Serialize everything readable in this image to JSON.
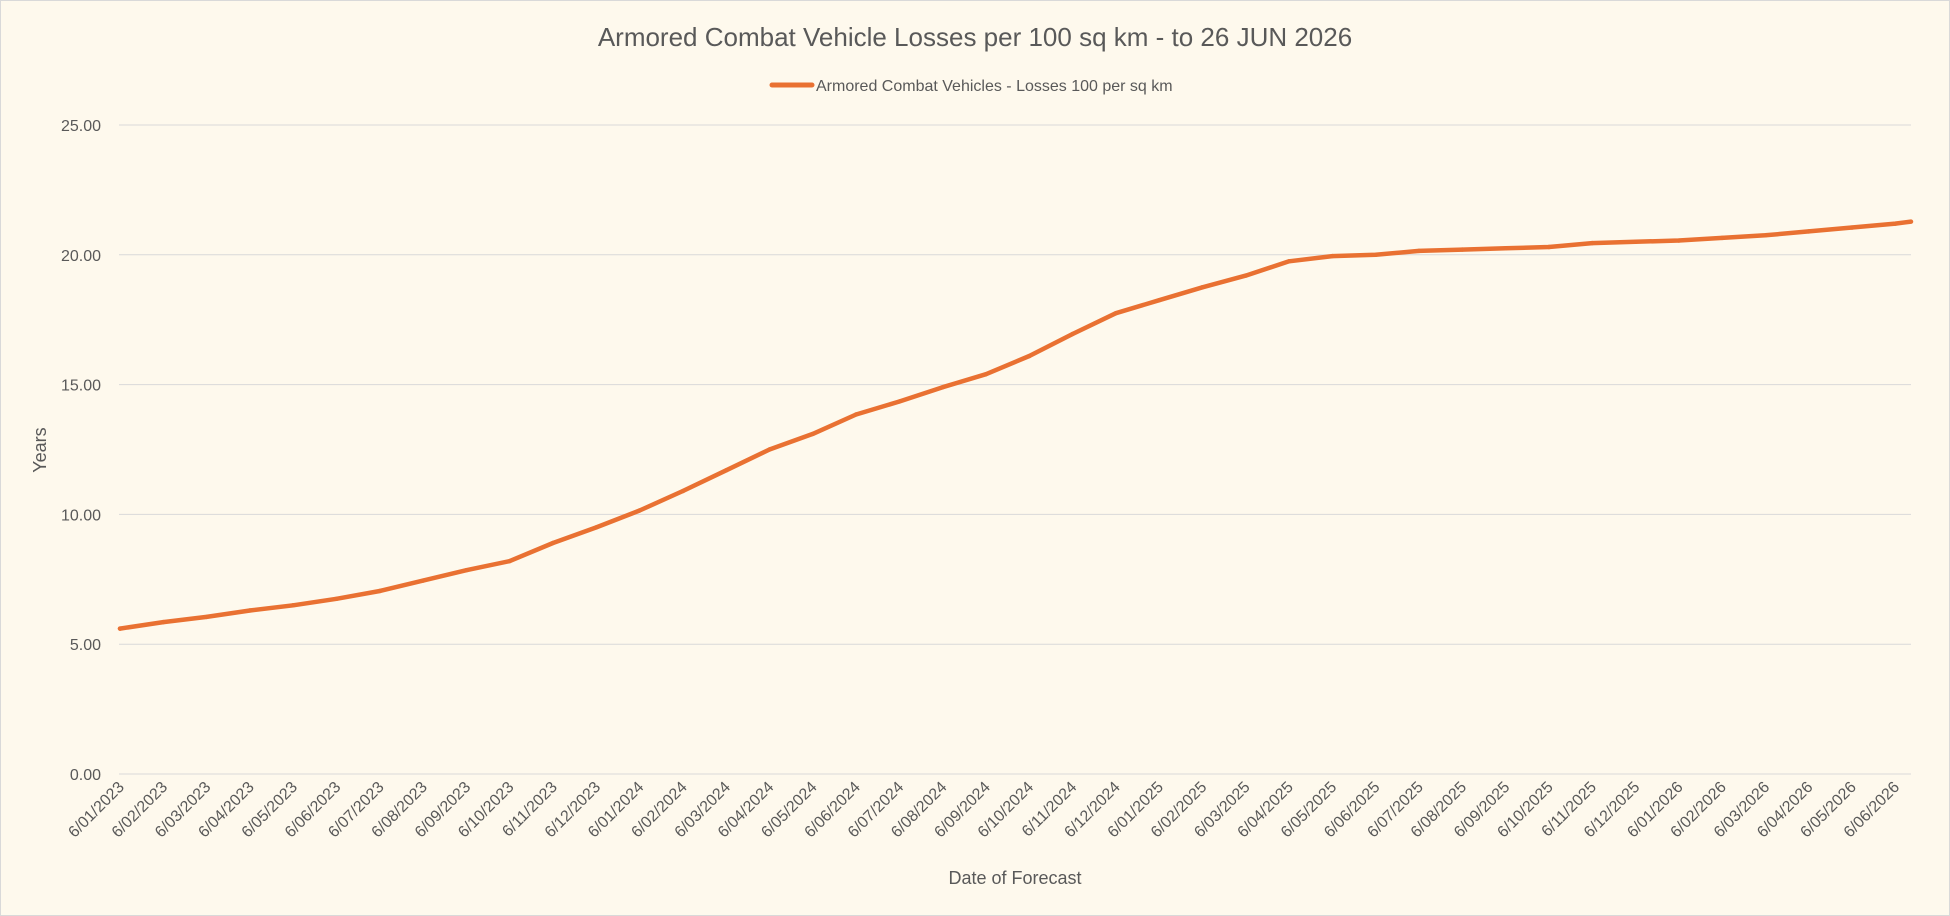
{
  "chart_data": {
    "type": "line",
    "title": "Armored Combat Vehicle Losses per 100 sq km - to 26 JUN 2026",
    "xlabel": "Date of Forecast",
    "ylabel": "Years",
    "ylim": [
      0,
      25
    ],
    "yticks": [
      "0.00",
      "5.00",
      "10.00",
      "15.00",
      "20.00",
      "25.00"
    ],
    "grid": true,
    "legend_position": "top-center",
    "categories": [
      "6/01/2023",
      "6/02/2023",
      "6/03/2023",
      "6/04/2023",
      "6/05/2023",
      "6/06/2023",
      "6/07/2023",
      "6/08/2023",
      "6/09/2023",
      "6/10/2023",
      "6/11/2023",
      "6/12/2023",
      "6/01/2024",
      "6/02/2024",
      "6/03/2024",
      "6/04/2024",
      "6/05/2024",
      "6/06/2024",
      "6/07/2024",
      "6/08/2024",
      "6/09/2024",
      "6/10/2024",
      "6/11/2024",
      "6/12/2024",
      "6/01/2025",
      "6/02/2025",
      "6/03/2025",
      "6/04/2025",
      "6/05/2025",
      "6/06/2025",
      "6/07/2025",
      "6/08/2025",
      "6/09/2025",
      "6/10/2025",
      "6/11/2025",
      "6/12/2025",
      "6/01/2026",
      "6/02/2026",
      "6/03/2026",
      "6/04/2026",
      "6/05/2026",
      "6/06/2026"
    ],
    "series": [
      {
        "name": "Armored Combat Vehicles - Losses 100 per sq km",
        "color": "#e97132",
        "values": [
          5.6,
          5.85,
          6.05,
          6.3,
          6.5,
          6.75,
          7.05,
          7.45,
          7.85,
          8.2,
          8.9,
          9.5,
          10.15,
          10.9,
          11.7,
          12.5,
          13.1,
          13.85,
          14.35,
          14.9,
          15.4,
          16.1,
          16.95,
          17.75,
          18.25,
          18.75,
          19.2,
          19.75,
          19.95,
          20.0,
          20.15,
          20.2,
          20.25,
          20.3,
          20.45,
          20.5,
          20.55,
          20.65,
          20.75,
          20.9,
          21.05,
          21.2
        ],
        "end_value": 21.28
      }
    ]
  }
}
